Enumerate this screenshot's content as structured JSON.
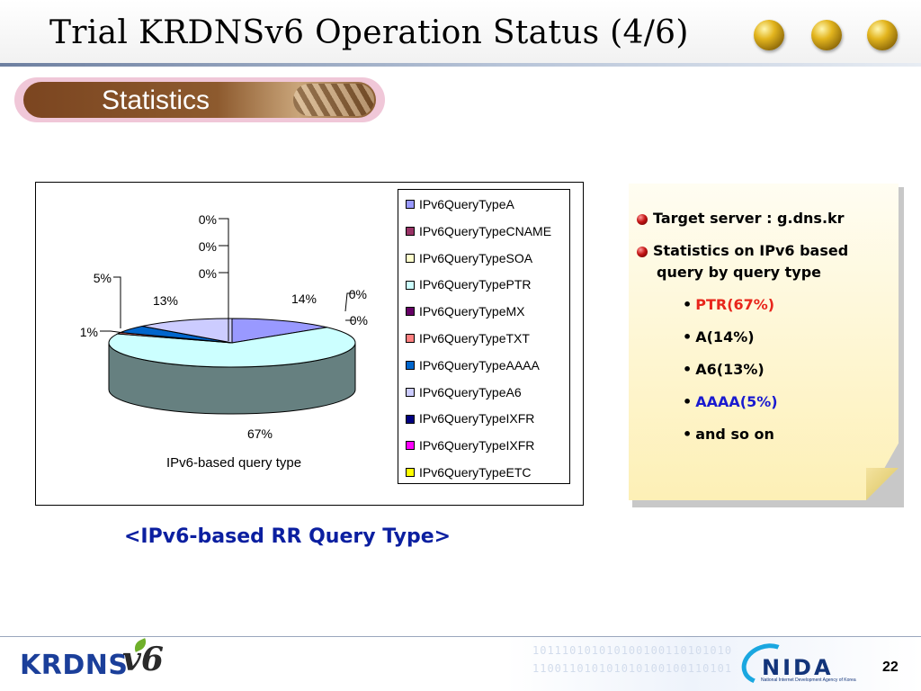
{
  "slide": {
    "title": "Trial KRDNSv6 Operation Status (4/6)",
    "section_title": "Statistics",
    "caption": "<IPv6-based RR Query Type>",
    "page_number": "22"
  },
  "colors": {
    "accent_title_blue": "#0b1fa0",
    "ptr_red": "#e8261c",
    "aaaa_blue": "#1a1ad0",
    "section_brown": "#8d5a2e",
    "note_yellow": "#fdf0b6"
  },
  "chart_data": {
    "type": "pie",
    "style": "3d",
    "title": "",
    "xlabel": "IPv6-based query type",
    "categories": [
      "IPv6QueryTypeA",
      "IPv6QueryTypeCNAME",
      "IPv6QueryTypeSOA",
      "IPv6QueryTypePTR",
      "IPv6QueryTypeMX",
      "IPv6QueryTypeTXT",
      "IPv6QueryTypeAAAA",
      "IPv6QueryTypeA6",
      "IPv6QueryTypeIXFR",
      "IPv6QueryTypeIXFR",
      "IPv6QueryTypeETC"
    ],
    "values": [
      14,
      0,
      0,
      67,
      0,
      1,
      5,
      13,
      0,
      0,
      0
    ],
    "value_labels": [
      "14%",
      "0%",
      "0%",
      "67%",
      "0%",
      "1%",
      "5%",
      "13%",
      "0%",
      "0%",
      "0%"
    ],
    "colors": [
      "#9999ff",
      "#993366",
      "#ffffcc",
      "#ccffff",
      "#660066",
      "#ff8080",
      "#0066cc",
      "#ccccff",
      "#000080",
      "#ff00ff",
      "#ffff00"
    ],
    "legend_position": "right"
  },
  "note": {
    "bullets": [
      {
        "text": "Target server : g.dns.kr"
      },
      {
        "line1": "Statistics on IPv6 based",
        "line2": "query by query type"
      }
    ],
    "sub_items": [
      {
        "marker": "•",
        "text": "PTR(67%)",
        "color": "#e8261c"
      },
      {
        "marker": "•",
        "text": "A(14%)",
        "color": "#000000"
      },
      {
        "marker": "•",
        "text": "A6(13%)",
        "color": "#000000"
      },
      {
        "marker": "•",
        "text": "AAAA(5%)",
        "color": "#1a1ad0"
      },
      {
        "marker": "•",
        "text": "and so on",
        "color": "#000000"
      }
    ]
  },
  "footer": {
    "logo_left_text": "KRDNS",
    "logo_left_suffix": "v6",
    "logo_right_text": "NIDA",
    "logo_right_subtext": "National Internet Development Agency of Korea",
    "binary_line_1": "101110101010100100110101010",
    "binary_line_2": "110011010101010100100110101"
  }
}
